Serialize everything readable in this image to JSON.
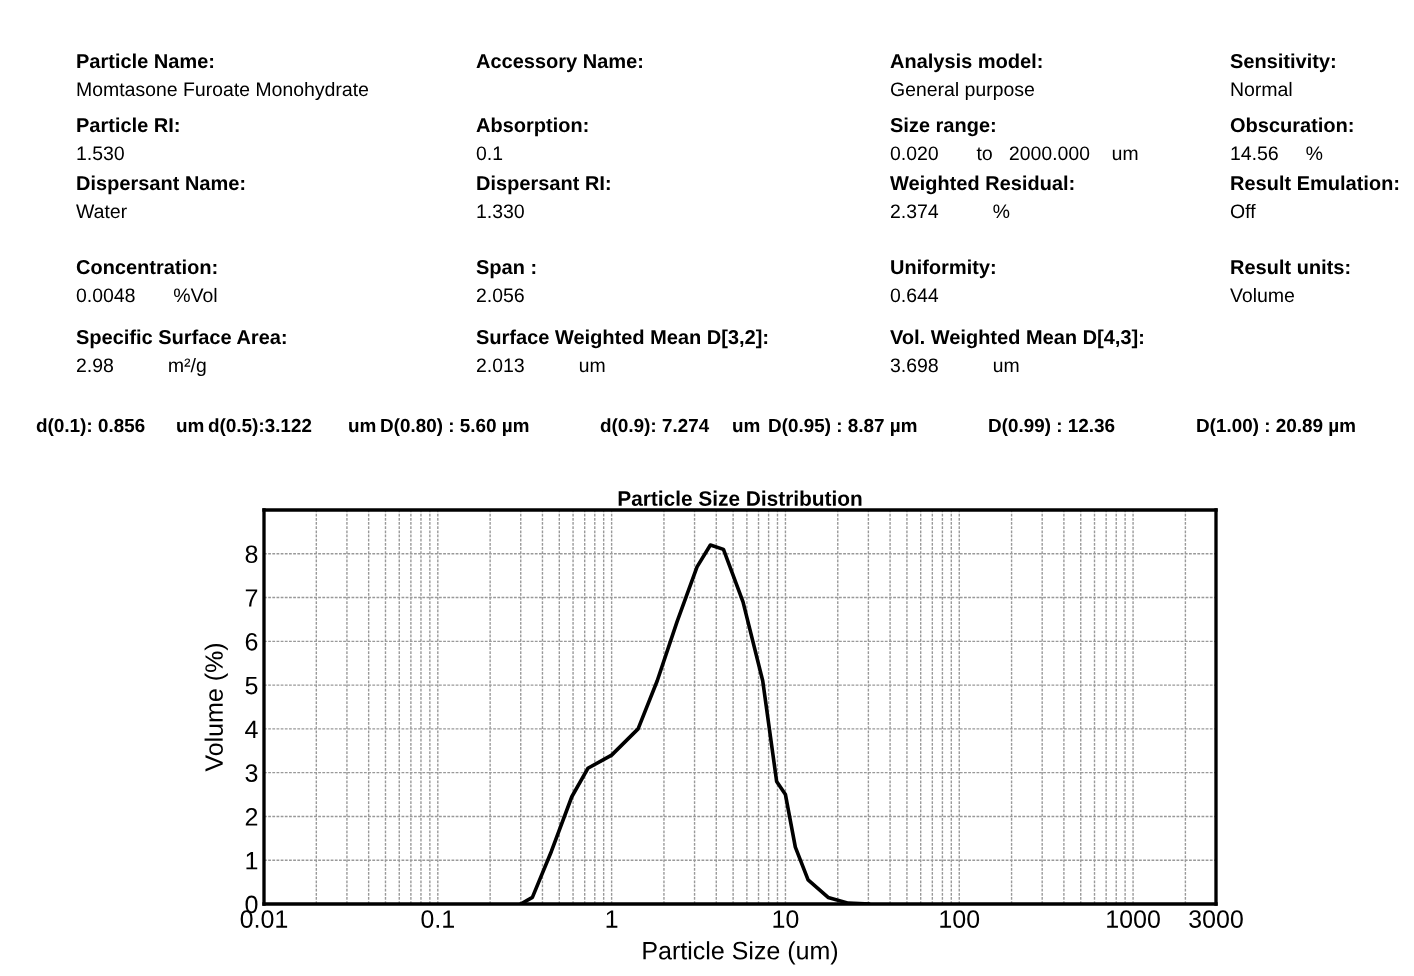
{
  "chart_data": {
    "type": "line",
    "title": "Particle Size Distribution",
    "xlabel": "Particle Size (um)",
    "ylabel": "Volume (%)",
    "x": [
      0.3,
      0.35,
      0.45,
      0.59,
      0.73,
      1.0,
      1.42,
      1.83,
      2.38,
      3.1,
      3.7,
      4.4,
      5.7,
      7.4,
      8.9,
      10.0,
      11.4,
      13.5,
      17.6,
      23,
      30
    ],
    "series": [
      {
        "color": "#000000",
        "values": [
          0,
          0.15,
          1.2,
          2.45,
          3.1,
          3.4,
          4.0,
          5.1,
          6.45,
          7.7,
          8.2,
          8.1,
          6.9,
          5.1,
          2.8,
          2.5,
          1.3,
          0.55,
          0.15,
          0.02,
          0
        ]
      }
    ],
    "log": "x",
    "xlim": [
      0.01,
      3000
    ],
    "xticks": [
      0.01,
      0.1,
      1,
      10,
      100,
      1000,
      3000
    ],
    "ylim": [
      0,
      9
    ],
    "yticks": [
      0,
      1,
      2,
      3,
      4,
      5,
      6,
      7,
      8
    ],
    "grid": true,
    "marker": "none",
    "line_style": "solid",
    "annotations": [
      "Particle Name:",
      "Momtasone Furoate Monohydrate",
      "Accessory Name:",
      "Analysis model:",
      "General purpose",
      "Sensitivity:",
      "Normal",
      "Particle RI:",
      "1.530",
      "Absorption:",
      "0.1",
      "Size range:",
      "0.020       to   2000.000    um",
      "Obscuration:",
      "14.56     %",
      "Dispersant Name:",
      "Water",
      "Dispersant RI:",
      "1.330",
      "Weighted Residual:",
      "2.374          %",
      "Result Emulation:",
      "Off",
      "Concentration:",
      "0.0048       %Vol",
      "Span :",
      "2.056",
      "Uniformity:",
      "0.644",
      "Result units:",
      "Volume",
      "Specific Surface Area:",
      "2.98          m²/g",
      "Surface Weighted Mean D[3,2]:",
      "2.013          um",
      "Vol. Weighted Mean D[4,3]:",
      "3.698          um",
      "d(0.1): 0.856",
      "um",
      "d(0.5):3.122",
      "um",
      "D(0.80) : 5.60 µm",
      "d(0.9): 7.274",
      "um",
      "D(0.95) : 8.87 µm",
      "D(0.99) : 12.36",
      "D(1.00) : 20.89 µm"
    ]
  }
}
